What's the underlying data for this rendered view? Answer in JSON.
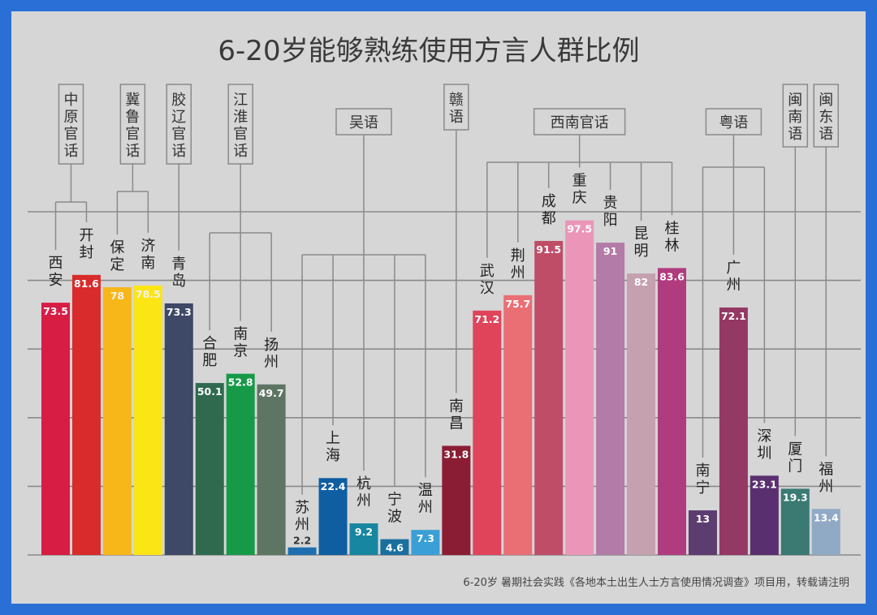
{
  "chart_data": {
    "type": "bar",
    "title": "6-20岁能够熟练使用方言人群比例",
    "footnote": "6-20岁 暑期社会实践《各地本土出生人士方言使用情况调查》项目用，转载请注明",
    "ylim": [
      0,
      100
    ],
    "grid": true,
    "categories": [
      "西安",
      "开封",
      "保定",
      "济南",
      "青岛",
      "合肥",
      "南京",
      "扬州",
      "苏州",
      "上海",
      "杭州",
      "宁波",
      "温州",
      "南昌",
      "武汉",
      "荆州",
      "成都",
      "重庆",
      "贵阳",
      "昆明",
      "桂林",
      "南宁",
      "广州",
      "深圳",
      "厦门",
      "福州"
    ],
    "values": [
      73.5,
      81.6,
      78,
      78.5,
      73.3,
      50.1,
      52.8,
      49.7,
      2.2,
      22.4,
      9.2,
      4.6,
      7.3,
      31.8,
      71.2,
      75.7,
      91.5,
      97.5,
      91,
      82,
      83.6,
      13,
      72.1,
      23.1,
      19.3,
      13.4
    ],
    "value_labels": [
      "73.5",
      "81.6",
      "78",
      "78.5",
      "73.3",
      "50.1",
      "52.8",
      "49.7",
      "2.2",
      "22.4",
      "9.2",
      "4.6",
      "7.3",
      "31.8",
      "71.2",
      "75.7",
      "91.5",
      "97.5",
      "91",
      "82",
      "83.6",
      "13",
      "72.1",
      "23.1",
      "19.3",
      "13.4"
    ],
    "colors": [
      "#d81d45",
      "#d92b2b",
      "#f7b718",
      "#fbe514",
      "#3e4867",
      "#2f6a4f",
      "#179a48",
      "#5f7564",
      "#1f6fb0",
      "#0f5ea2",
      "#1786a0",
      "#1a6f9e",
      "#3a9fd6",
      "#8a1d34",
      "#e0445b",
      "#e96f75",
      "#bf4d68",
      "#eb96b8",
      "#b37ba8",
      "#c5a0af",
      "#b03c7f",
      "#5d3d70",
      "#943864",
      "#5a2f6f",
      "#3a7a72",
      "#90a9c5"
    ],
    "groups": [
      {
        "name": "中原官话",
        "members": [
          0,
          1
        ]
      },
      {
        "name": "冀鲁官话",
        "members": [
          2,
          3
        ]
      },
      {
        "name": "胶辽官话",
        "members": [
          4
        ]
      },
      {
        "name": "江淮官话",
        "members": [
          5,
          6,
          7
        ]
      },
      {
        "name": "吴语",
        "members": [
          8,
          9,
          10,
          11,
          12
        ]
      },
      {
        "name": "赣语",
        "members": [
          13
        ]
      },
      {
        "name": "西南官话",
        "members": [
          14,
          15,
          16,
          17,
          18,
          19,
          20
        ]
      },
      {
        "name": "粤语",
        "members": [
          21,
          22,
          23
        ]
      },
      {
        "name": "闽南语",
        "members": [
          24
        ]
      },
      {
        "name": "闽东语",
        "members": [
          25
        ]
      }
    ]
  }
}
